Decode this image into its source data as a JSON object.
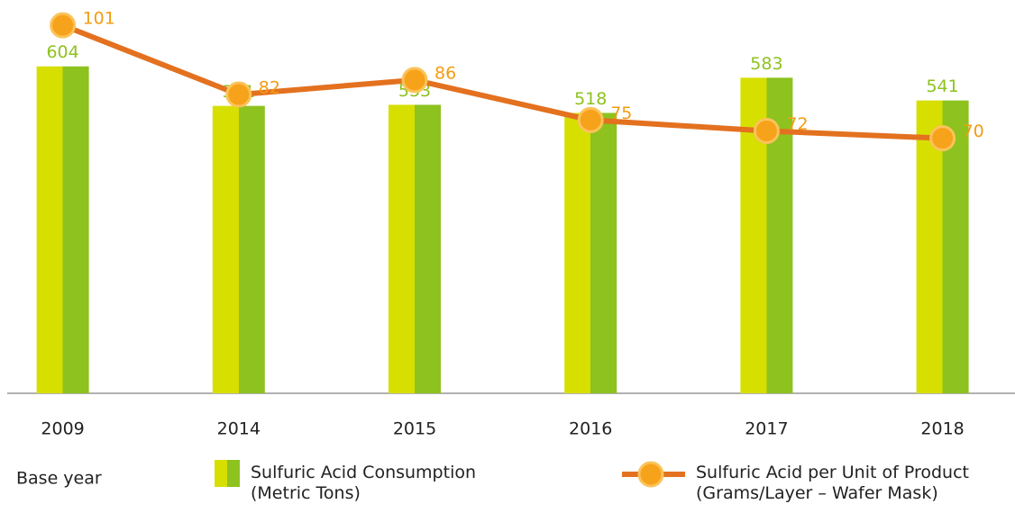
{
  "chart_data": {
    "type": "bar-line",
    "categories": [
      "2009",
      "2014",
      "2015",
      "2016",
      "2017",
      "2018"
    ],
    "annotation": "Base year",
    "series": [
      {
        "name": "Sulfuric Acid Consumption (Metric Tons)",
        "type": "bar",
        "color": [
          "#d7df01",
          "#8dc21f"
        ],
        "label_color": "#8dc21f",
        "values": [
          604,
          531,
          533,
          518,
          583,
          541
        ]
      },
      {
        "name": "Sulfuric Acid per Unit of Product (Grams/Layer – Wafer Mask)",
        "type": "line",
        "axis": "y2",
        "color": "#e3711f",
        "marker_color": "#f7a21b",
        "label_color": "#f39c12",
        "values": [
          101,
          82,
          86,
          75,
          72,
          70
        ]
      }
    ],
    "ylim": [
      0,
      700
    ],
    "y2lim": [
      0,
      104
    ]
  }
}
